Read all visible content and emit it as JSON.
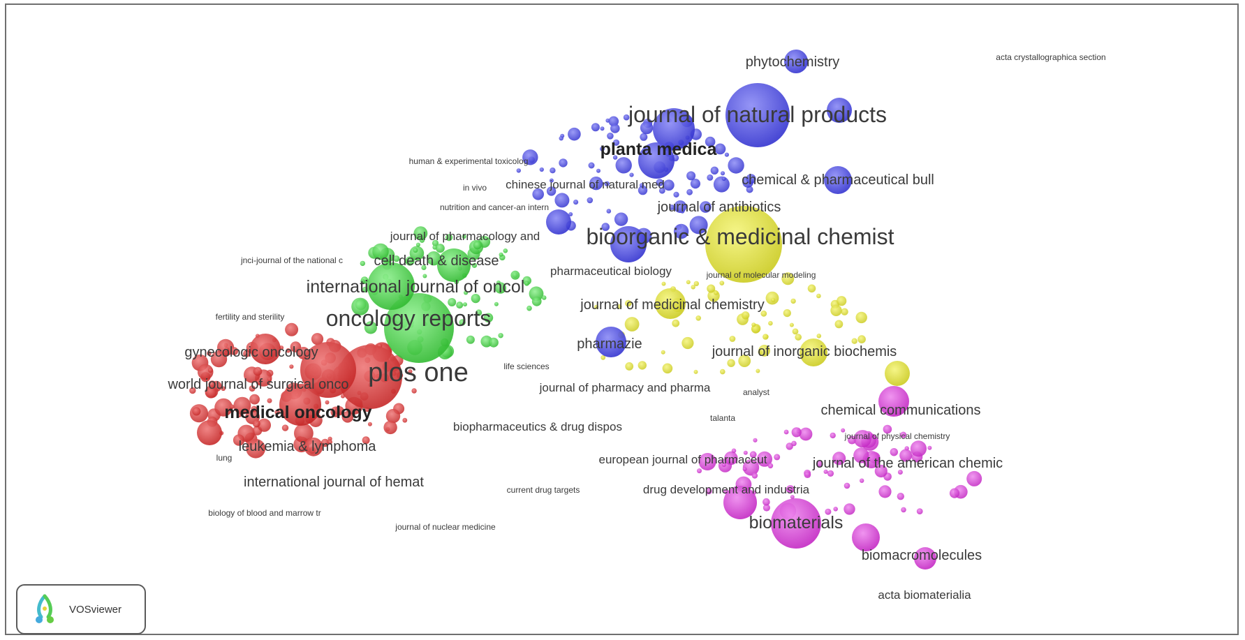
{
  "colors": {
    "red": "#d93b3b",
    "green": "#44cc44",
    "blue": "#4a4ae0",
    "yellow": "#dede33",
    "purple": "#d63ed6"
  },
  "brand": {
    "name": "VOSviewer",
    "icon": "vosviewer-logo-icon"
  },
  "labels": [
    {
      "id": "phytochemistry",
      "text": "phytochemistry",
      "size": "m"
    },
    {
      "id": "acta-crystallographica",
      "text": "acta crystallographica section",
      "size": "xs"
    },
    {
      "id": "journal-of-natural-products",
      "text": "journal of natural products",
      "size": "xl"
    },
    {
      "id": "planta-medica",
      "text": "planta medica",
      "size": "l",
      "bold": true
    },
    {
      "id": "human-experimental-toxicolog",
      "text": "human & experimental toxicolog",
      "size": "xs"
    },
    {
      "id": "in-vivo",
      "text": "in vivo",
      "size": "xs"
    },
    {
      "id": "chinese-journal-natural-med",
      "text": "chinese journal of natural med",
      "size": "s"
    },
    {
      "id": "chemical-pharmaceutical-bull",
      "text": "chemical & pharmaceutical bull",
      "size": "m"
    },
    {
      "id": "nutrition-and-cancer",
      "text": "nutrition and cancer-an intern",
      "size": "xs"
    },
    {
      "id": "journal-of-antibiotics",
      "text": "journal of antibiotics",
      "size": "m"
    },
    {
      "id": "journal-of-pharmacology",
      "text": "journal of pharmacology and",
      "size": "s"
    },
    {
      "id": "bioorganic-medicinal-chemist",
      "text": "bioorganic & medicinal chemist",
      "size": "xl"
    },
    {
      "id": "jnci-journal",
      "text": "jnci-journal of the national c",
      "size": "xs"
    },
    {
      "id": "cell-death-disease",
      "text": "cell death & disease",
      "size": "m"
    },
    {
      "id": "pharmaceutical-biology",
      "text": "pharmaceutical biology",
      "size": "s"
    },
    {
      "id": "journal-of-molecular-modeling",
      "text": "journal of molecular modeling",
      "size": "xs"
    },
    {
      "id": "international-journal-of-oncol",
      "text": "international journal of oncol",
      "size": "l"
    },
    {
      "id": "journal-of-medicinal-chemistry",
      "text": "journal of medicinal chemistry",
      "size": "m"
    },
    {
      "id": "fertility-and-sterility",
      "text": "fertility and sterility",
      "size": "xs"
    },
    {
      "id": "oncology-reports",
      "text": "oncology reports",
      "size": "xl"
    },
    {
      "id": "pharmazie",
      "text": "pharmazie",
      "size": "m"
    },
    {
      "id": "gynecologic-oncology",
      "text": "gynecologic oncology",
      "size": "m"
    },
    {
      "id": "journal-of-inorganic-biochemis",
      "text": "journal of inorganic biochemis",
      "size": "m"
    },
    {
      "id": "plos-one",
      "text": "plos one",
      "size": "xxl"
    },
    {
      "id": "life-sciences",
      "text": "life sciences",
      "size": "xs"
    },
    {
      "id": "world-journal-of-surgical-onco",
      "text": "world journal of surgical onco",
      "size": "m"
    },
    {
      "id": "journal-of-pharmacy-and-pharma",
      "text": "journal of pharmacy and pharma",
      "size": "s"
    },
    {
      "id": "analyst",
      "text": "analyst",
      "size": "xs"
    },
    {
      "id": "medical-oncology",
      "text": "medical oncology",
      "size": "l",
      "bold": true
    },
    {
      "id": "talanta",
      "text": "talanta",
      "size": "xs"
    },
    {
      "id": "chemical-communications",
      "text": "chemical communications",
      "size": "m"
    },
    {
      "id": "biopharmaceutics-drug-dispos",
      "text": "biopharmaceutics & drug dispos",
      "size": "s"
    },
    {
      "id": "journal-of-physical-chemistry",
      "text": "journal of physical chemistry",
      "size": "xs"
    },
    {
      "id": "leukemia-lymphoma",
      "text": "leukemia & lymphoma",
      "size": "m"
    },
    {
      "id": "european-journal-of-pharmaceut",
      "text": "european journal of pharmaceut",
      "size": "s"
    },
    {
      "id": "journal-of-the-american-chemic",
      "text": "journal of the american chemic",
      "size": "m"
    },
    {
      "id": "lung",
      "text": "lung",
      "size": "xs"
    },
    {
      "id": "international-journal-of-hemat",
      "text": "international journal of hemat",
      "size": "m"
    },
    {
      "id": "drug-development-and-industria",
      "text": "drug development and industria",
      "size": "s"
    },
    {
      "id": "current-drug-targets",
      "text": "current drug targets",
      "size": "xs"
    },
    {
      "id": "biology-of-blood-and-marrow",
      "text": "biology of blood and marrow tr",
      "size": "xs"
    },
    {
      "id": "biomaterials",
      "text": "biomaterials",
      "size": "l"
    },
    {
      "id": "journal-of-nuclear-medicine",
      "text": "journal of nuclear medicine",
      "size": "xs"
    },
    {
      "id": "biomacromolecules",
      "text": "biomacromolecules",
      "size": "m"
    },
    {
      "id": "acta-biomaterialia",
      "text": "acta biomaterialia",
      "size": "s"
    }
  ]
}
